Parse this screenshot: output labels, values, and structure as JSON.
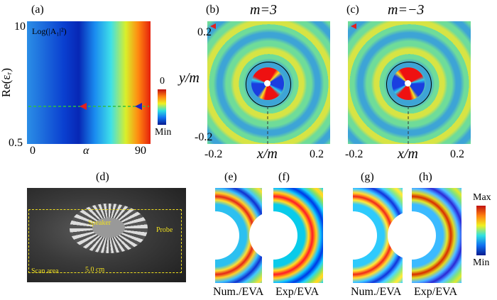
{
  "panel_a": {
    "label": "(a)",
    "inset_label": "Log(|A₁|²)",
    "y_axis_label": "Re(εᵣ)",
    "y_ticks": [
      "10",
      "0.5"
    ],
    "x_axis_label": "α",
    "x_ticks": [
      "0",
      "90"
    ],
    "colorbar_ticks": [
      "0",
      "Min"
    ]
  },
  "panel_b": {
    "label": "(b)",
    "title": "m=3",
    "y_axis_label": "y/m",
    "y_ticks": [
      "0.2",
      "-0.2"
    ],
    "x_axis_label": "x/m",
    "x_ticks": [
      "-0.2",
      "0.2"
    ]
  },
  "panel_c": {
    "label": "(c)",
    "title": "m=−3",
    "x_axis_label": "x/m",
    "x_ticks": [
      "-0.2",
      "0.2"
    ]
  },
  "panel_d": {
    "label": "(d)",
    "annotations": [
      "Speaker",
      "Probe",
      "Scan area",
      "5.0 cm"
    ]
  },
  "field_panels": [
    {
      "label": "(e)",
      "caption": "Num./EVA"
    },
    {
      "label": "(f)",
      "caption": "Exp/EVA"
    },
    {
      "label": "(g)",
      "caption": "Num./EVA"
    },
    {
      "label": "(h)",
      "caption": "Exp/EVA"
    }
  ],
  "field_colorbar_ticks": [
    "Max",
    "Min"
  ]
}
